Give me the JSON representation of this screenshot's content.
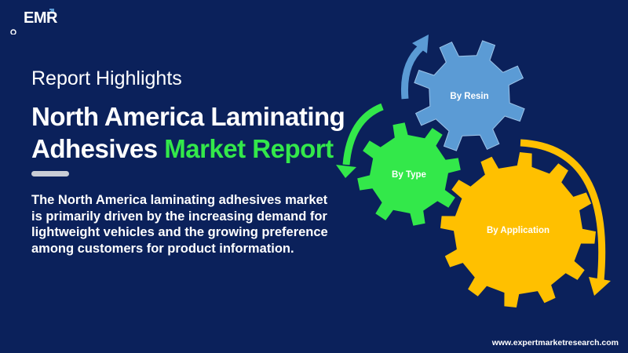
{
  "logo": {
    "text": "EMR"
  },
  "header": {
    "kicker": "Report Highlights",
    "title_line1": "North America Laminating",
    "title_line2_plain": "Adhesives ",
    "title_line2_highlight": "Market Report"
  },
  "description": "The North America laminating adhesives market is primarily driven by the increasing demand for lightweight vehicles and the growing preference among customers for product information.",
  "gears": [
    {
      "label": "By Resin",
      "color": "#5b9bd5"
    },
    {
      "label": "By Type",
      "color": "#33e84a"
    },
    {
      "label": "By Application",
      "color": "#ffc000"
    }
  ],
  "colors": {
    "background": "#0b215b",
    "highlight": "#33e84a"
  },
  "footer": {
    "url": "www.expertmarketresearch.com"
  }
}
